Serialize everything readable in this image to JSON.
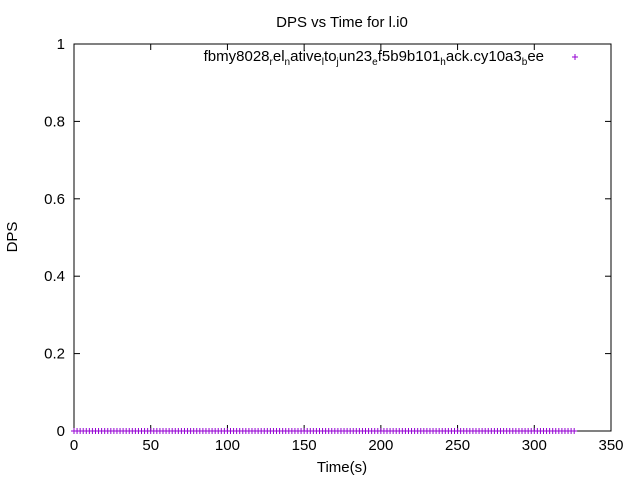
{
  "chart_data": {
    "type": "scatter",
    "title": "DPS vs Time for l.i0",
    "xlabel": "Time(s)",
    "ylabel": "DPS",
    "xlim": [
      0,
      350
    ],
    "ylim": [
      0,
      1
    ],
    "x_ticks": [
      "0",
      "50",
      "100",
      "150",
      "200",
      "250",
      "300",
      "350"
    ],
    "y_ticks": [
      "0",
      "0.2",
      "0.4",
      "0.6",
      "0.8",
      "1"
    ],
    "grid": false,
    "legend_position": "top-right",
    "series": [
      {
        "name": "fbmy8028_rel_native_lto_jun23_ef5b9b101_hack.cy10a3_bee",
        "name_parts": [
          {
            "text": "fbmy8028",
            "sub": false
          },
          {
            "text": "r",
            "sub": true
          },
          {
            "text": "el",
            "sub": false
          },
          {
            "text": "n",
            "sub": true
          },
          {
            "text": "ative",
            "sub": false
          },
          {
            "text": "l",
            "sub": true
          },
          {
            "text": "to",
            "sub": false
          },
          {
            "text": "j",
            "sub": true
          },
          {
            "text": "un23",
            "sub": false
          },
          {
            "text": "e",
            "sub": true
          },
          {
            "text": "f5b9b101",
            "sub": false
          },
          {
            "text": "h",
            "sub": true
          },
          {
            "text": "ack.cy10a3",
            "sub": false
          },
          {
            "text": "b",
            "sub": true
          },
          {
            "text": "ee",
            "sub": false
          }
        ],
        "color": "#9400d3",
        "marker": "plus",
        "x_start": 0,
        "x_end": 327,
        "x_step": 2,
        "y_value": 0
      }
    ]
  }
}
